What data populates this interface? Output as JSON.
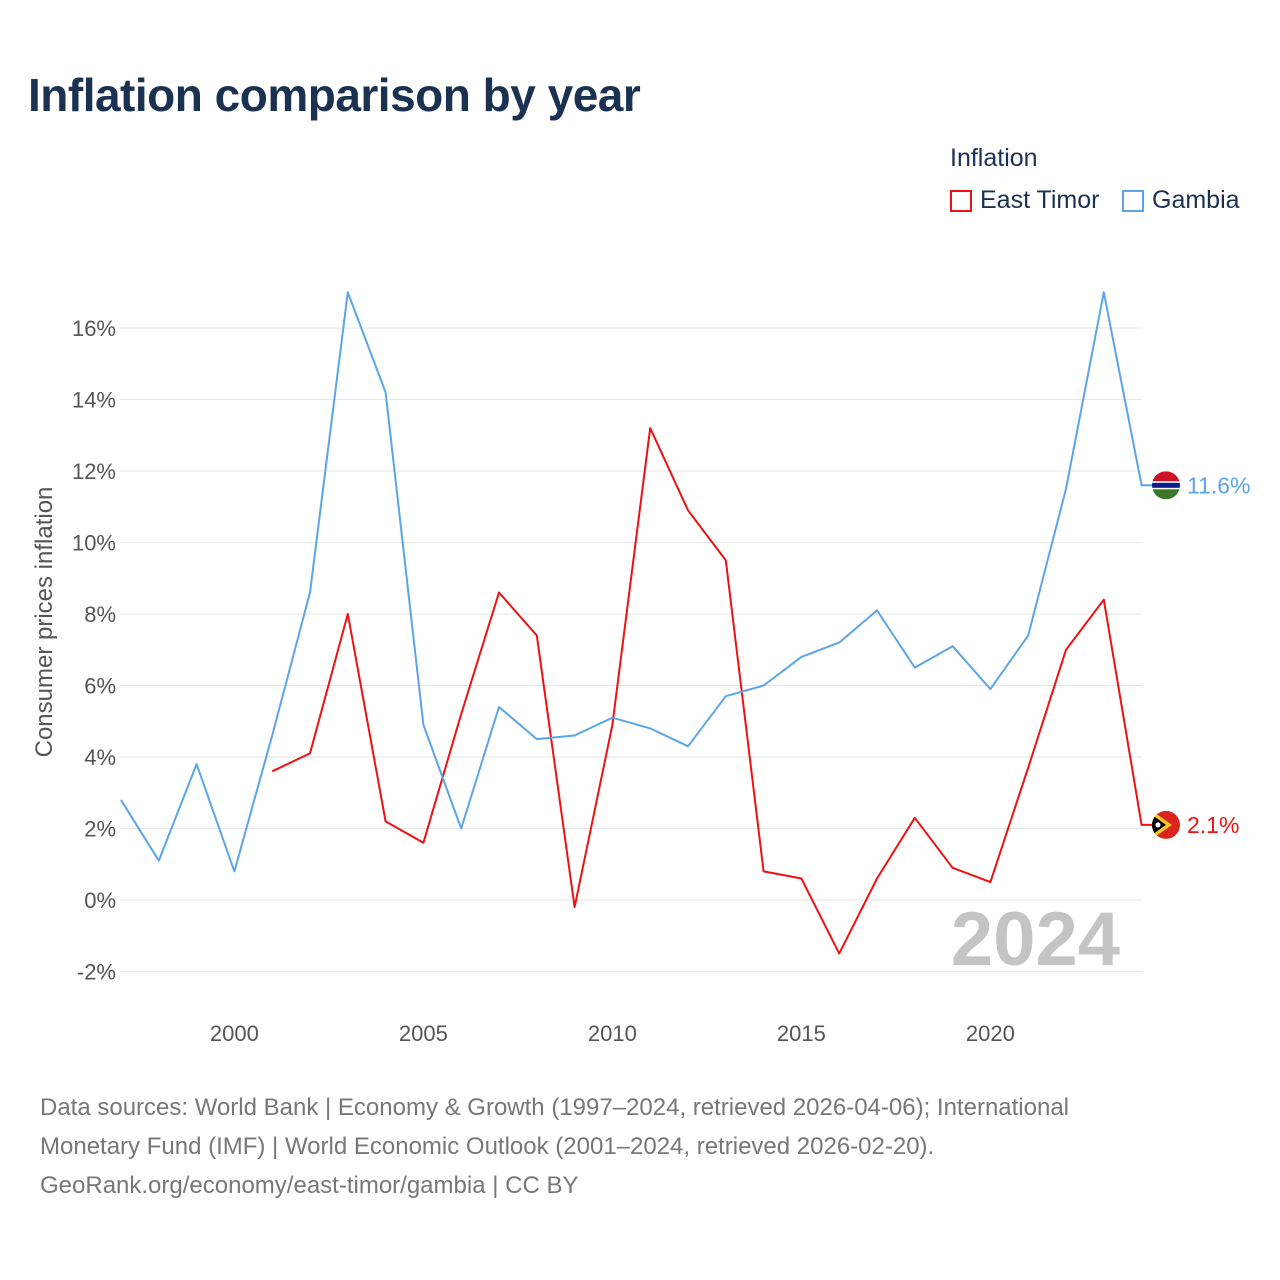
{
  "title": "Inflation comparison by year",
  "chart_data": {
    "type": "line",
    "title": "Inflation comparison by year",
    "xlabel": "",
    "ylabel": "Consumer prices inflation",
    "legend_title": "Inflation",
    "legend_position": "top-right",
    "xlim": [
      1997,
      2024
    ],
    "ylim": [
      -2.8,
      17.4
    ],
    "x_ticks": [
      2000,
      2005,
      2010,
      2015,
      2020
    ],
    "y_ticks": [
      -2,
      0,
      2,
      4,
      6,
      8,
      10,
      12,
      14,
      16
    ],
    "y_tick_labels": [
      "-2%",
      "0%",
      "2%",
      "4%",
      "6%",
      "8%",
      "10%",
      "12%",
      "14%",
      "16%"
    ],
    "grid": true,
    "year_watermark": "2024",
    "series": [
      {
        "name": "East Timor",
        "color": "#ee1111",
        "end_label": "2.1%",
        "x": [
          2001,
          2002,
          2003,
          2004,
          2005,
          2006,
          2007,
          2008,
          2009,
          2010,
          2011,
          2012,
          2013,
          2014,
          2015,
          2016,
          2017,
          2018,
          2019,
          2020,
          2021,
          2022,
          2023,
          2024
        ],
        "values": [
          3.6,
          4.1,
          8.0,
          2.2,
          1.6,
          5.2,
          8.6,
          7.4,
          -0.2,
          4.9,
          13.2,
          10.9,
          9.5,
          0.8,
          0.6,
          -1.5,
          0.6,
          2.3,
          0.9,
          0.5,
          3.7,
          7.0,
          8.4,
          2.1
        ]
      },
      {
        "name": "Gambia",
        "color": "#5aa5e8",
        "end_label": "11.6%",
        "x": [
          1997,
          1998,
          1999,
          2000,
          2001,
          2002,
          2003,
          2004,
          2005,
          2006,
          2007,
          2008,
          2009,
          2010,
          2011,
          2012,
          2013,
          2014,
          2015,
          2016,
          2017,
          2018,
          2019,
          2020,
          2021,
          2022,
          2023,
          2024
        ],
        "values": [
          2.8,
          1.1,
          3.8,
          0.8,
          4.6,
          8.6,
          17.0,
          14.2,
          4.9,
          2.0,
          5.4,
          4.5,
          4.6,
          5.1,
          4.8,
          4.3,
          5.7,
          6.0,
          6.8,
          7.2,
          8.1,
          6.5,
          7.1,
          5.9,
          7.4,
          11.5,
          17.0,
          11.6
        ]
      }
    ]
  },
  "footer": {
    "line1": "Data sources: World Bank | Economy & Growth (1997–2024, retrieved 2026-04-06); International",
    "line2": "Monetary Fund (IMF) | World Economic Outlook (2001–2024, retrieved 2026-02-20).",
    "line3": "GeoRank.org/economy/east-timor/gambia | CC BY"
  }
}
